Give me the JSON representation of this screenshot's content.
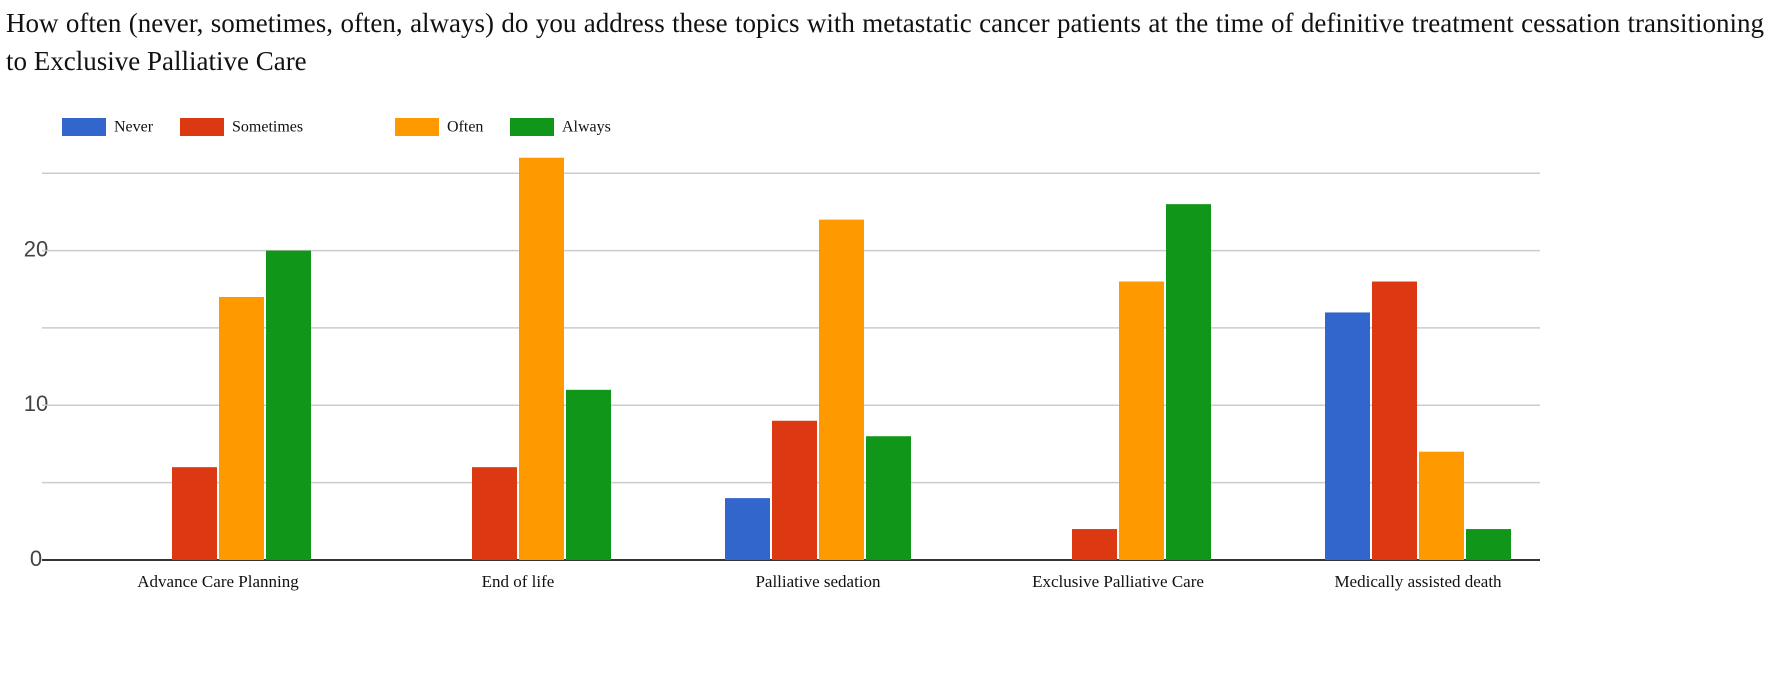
{
  "chart_data": {
    "type": "bar",
    "title": "How often (never, sometimes, often, always) do you address these topics with metastatic cancer patients at the time of definitive treatment cessation transitioning to Exclusive Palliative Care",
    "categories": [
      "Advance Care Planning",
      "End of life",
      "Palliative sedation",
      "Exclusive Palliative Care",
      "Medically assisted death"
    ],
    "series": [
      {
        "name": "Never",
        "color": "#3366cc",
        "values": [
          0,
          0,
          4,
          0,
          16
        ]
      },
      {
        "name": "Sometimes",
        "color": "#dc3912",
        "values": [
          6,
          6,
          9,
          2,
          18
        ]
      },
      {
        "name": "Often",
        "color": "#ff9900",
        "values": [
          17,
          26,
          22,
          18,
          7
        ]
      },
      {
        "name": "Always",
        "color": "#109618",
        "values": [
          20,
          11,
          8,
          23,
          2
        ]
      }
    ],
    "ylim": [
      0,
      26.5
    ],
    "yticks": [
      0,
      10,
      20
    ],
    "minor_grid": [
      5,
      15,
      25
    ],
    "grid": true,
    "legend": "top-left"
  }
}
